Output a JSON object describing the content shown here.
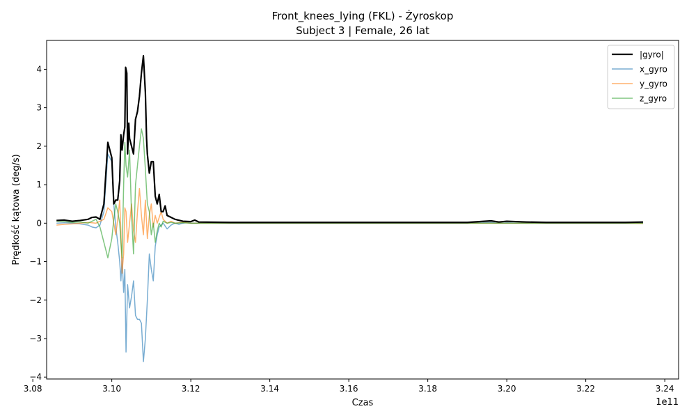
{
  "chart_data": {
    "type": "line",
    "title": "Front_knees_lying (FKL) - Żyroskop",
    "subtitle": "Subject 3 | Female, 26 lat",
    "xlabel": "Czas",
    "ylabel": "Prędkość kątowa (deg/s)",
    "x_offset_label": "1e11",
    "xlim": [
      3.0835,
      3.2435
    ],
    "ylim": [
      -4.05,
      4.75
    ],
    "x_ticks": [
      3.08,
      3.1,
      3.12,
      3.14,
      3.16,
      3.18,
      3.2,
      3.22,
      3.24
    ],
    "x_tick_labels": [
      "3.08",
      "3.10",
      "3.12",
      "3.14",
      "3.16",
      "3.18",
      "3.20",
      "3.22",
      "3.24"
    ],
    "y_ticks": [
      -4,
      -3,
      -2,
      -1,
      0,
      1,
      2,
      3,
      4
    ],
    "y_tick_labels": [
      "−4",
      "−3",
      "−2",
      "−1",
      "0",
      "1",
      "2",
      "3",
      "4"
    ],
    "grid": false,
    "legend_position": "top-right",
    "series": [
      {
        "name": "x_gyro",
        "color": "#1f77b4",
        "opacity": 0.6,
        "width": 1.5,
        "points": [
          [
            3.086,
            0.0
          ],
          [
            3.088,
            0.01
          ],
          [
            3.09,
            0.0
          ],
          [
            3.092,
            -0.02
          ],
          [
            3.094,
            -0.05
          ],
          [
            3.095,
            -0.1
          ],
          [
            3.096,
            -0.12
          ],
          [
            3.097,
            -0.05
          ],
          [
            3.098,
            0.3
          ],
          [
            3.099,
            1.8
          ],
          [
            3.1,
            1.6
          ],
          [
            3.1005,
            0.5
          ],
          [
            3.101,
            -0.1
          ],
          [
            3.1015,
            -0.5
          ],
          [
            3.102,
            -1.0
          ],
          [
            3.1023,
            -1.5
          ],
          [
            3.1026,
            -0.9
          ],
          [
            3.103,
            -1.8
          ],
          [
            3.1033,
            -1.2
          ],
          [
            3.1036,
            -3.35
          ],
          [
            3.104,
            -1.6
          ],
          [
            3.1045,
            -2.2
          ],
          [
            3.105,
            -1.9
          ],
          [
            3.1055,
            -1.5
          ],
          [
            3.106,
            -2.4
          ],
          [
            3.1065,
            -2.5
          ],
          [
            3.107,
            -2.5
          ],
          [
            3.1075,
            -2.6
          ],
          [
            3.1078,
            -3.2
          ],
          [
            3.108,
            -3.6
          ],
          [
            3.1085,
            -3.0
          ],
          [
            3.109,
            -2.0
          ],
          [
            3.1095,
            -0.8
          ],
          [
            3.11,
            -1.2
          ],
          [
            3.1105,
            -1.5
          ],
          [
            3.111,
            -0.6
          ],
          [
            3.1115,
            -0.3
          ],
          [
            3.112,
            -0.1
          ],
          [
            3.1125,
            -0.05
          ],
          [
            3.113,
            0.0
          ],
          [
            3.114,
            -0.15
          ],
          [
            3.115,
            -0.05
          ],
          [
            3.116,
            0.0
          ],
          [
            3.117,
            -0.03
          ],
          [
            3.118,
            0.0
          ],
          [
            3.119,
            0.02
          ],
          [
            3.12,
            0.0
          ],
          [
            3.121,
            0.0
          ],
          [
            3.122,
            0.0
          ],
          [
            3.13,
            0.0
          ],
          [
            3.14,
            0.0
          ],
          [
            3.15,
            0.0
          ],
          [
            3.16,
            0.0
          ],
          [
            3.17,
            0.0
          ],
          [
            3.18,
            0.0
          ],
          [
            3.19,
            0.0
          ],
          [
            3.196,
            0.02
          ],
          [
            3.198,
            0.0
          ],
          [
            3.2,
            0.01
          ],
          [
            3.205,
            0.0
          ],
          [
            3.21,
            0.0
          ],
          [
            3.22,
            0.0
          ],
          [
            3.23,
            0.0
          ],
          [
            3.2345,
            0.0
          ]
        ]
      },
      {
        "name": "y_gyro",
        "color": "#ff7f0e",
        "opacity": 0.6,
        "width": 1.5,
        "points": [
          [
            3.086,
            -0.05
          ],
          [
            3.088,
            -0.03
          ],
          [
            3.09,
            -0.02
          ],
          [
            3.092,
            0.0
          ],
          [
            3.094,
            0.02
          ],
          [
            3.096,
            0.0
          ],
          [
            3.097,
            0.05
          ],
          [
            3.098,
            0.1
          ],
          [
            3.099,
            0.4
          ],
          [
            3.1,
            0.3
          ],
          [
            3.1005,
            0.0
          ],
          [
            3.101,
            -0.3
          ],
          [
            3.1015,
            0.1
          ],
          [
            3.102,
            0.6
          ],
          [
            3.1023,
            -0.2
          ],
          [
            3.1026,
            -1.3
          ],
          [
            3.103,
            -0.8
          ],
          [
            3.1033,
            0.4
          ],
          [
            3.1036,
            0.3
          ],
          [
            3.104,
            -0.5
          ],
          [
            3.1045,
            0.0
          ],
          [
            3.105,
            0.5
          ],
          [
            3.1055,
            -0.2
          ],
          [
            3.106,
            -0.5
          ],
          [
            3.1065,
            0.3
          ],
          [
            3.107,
            0.9
          ],
          [
            3.1075,
            0.2
          ],
          [
            3.108,
            -0.3
          ],
          [
            3.1085,
            0.6
          ],
          [
            3.109,
            -0.4
          ],
          [
            3.1095,
            0.2
          ],
          [
            3.11,
            0.5
          ],
          [
            3.1105,
            -0.1
          ],
          [
            3.111,
            0.2
          ],
          [
            3.1115,
            0.0
          ],
          [
            3.112,
            0.15
          ],
          [
            3.1125,
            0.3
          ],
          [
            3.113,
            0.1
          ],
          [
            3.114,
            0.0
          ],
          [
            3.115,
            0.05
          ],
          [
            3.116,
            0.0
          ],
          [
            3.118,
            0.02
          ],
          [
            3.12,
            0.0
          ],
          [
            3.122,
            0.0
          ],
          [
            3.13,
            0.0
          ],
          [
            3.14,
            0.0
          ],
          [
            3.15,
            0.0
          ],
          [
            3.16,
            0.0
          ],
          [
            3.17,
            0.0
          ],
          [
            3.18,
            0.0
          ],
          [
            3.19,
            0.0
          ],
          [
            3.2,
            0.0
          ],
          [
            3.21,
            0.0
          ],
          [
            3.22,
            0.0
          ],
          [
            3.23,
            0.0
          ],
          [
            3.2345,
            -0.01
          ]
        ]
      },
      {
        "name": "z_gyro",
        "color": "#2ca02c",
        "opacity": 0.6,
        "width": 1.5,
        "points": [
          [
            3.086,
            0.05
          ],
          [
            3.088,
            0.04
          ],
          [
            3.09,
            0.02
          ],
          [
            3.092,
            0.03
          ],
          [
            3.094,
            0.0
          ],
          [
            3.095,
            0.05
          ],
          [
            3.096,
            0.1
          ],
          [
            3.097,
            -0.1
          ],
          [
            3.098,
            -0.5
          ],
          [
            3.099,
            -0.9
          ],
          [
            3.1,
            -0.4
          ],
          [
            3.1005,
            0.1
          ],
          [
            3.101,
            0.5
          ],
          [
            3.1015,
            0.3
          ],
          [
            3.102,
            0.0
          ],
          [
            3.1023,
            -0.5
          ],
          [
            3.1026,
            -0.9
          ],
          [
            3.103,
            1.0
          ],
          [
            3.1033,
            2.1
          ],
          [
            3.1036,
            1.5
          ],
          [
            3.104,
            1.2
          ],
          [
            3.1045,
            1.9
          ],
          [
            3.105,
            0.2
          ],
          [
            3.1055,
            -0.8
          ],
          [
            3.106,
            1.0
          ],
          [
            3.1065,
            1.5
          ],
          [
            3.107,
            2.0
          ],
          [
            3.1075,
            2.45
          ],
          [
            3.108,
            2.2
          ],
          [
            3.1085,
            1.4
          ],
          [
            3.109,
            0.5
          ],
          [
            3.1095,
            0.3
          ],
          [
            3.11,
            -0.3
          ],
          [
            3.1105,
            0.0
          ],
          [
            3.111,
            -0.5
          ],
          [
            3.1115,
            -0.2
          ],
          [
            3.112,
            0.0
          ],
          [
            3.1125,
            -0.1
          ],
          [
            3.113,
            0.05
          ],
          [
            3.114,
            0.0
          ],
          [
            3.115,
            0.02
          ],
          [
            3.116,
            0.0
          ],
          [
            3.118,
            0.01
          ],
          [
            3.12,
            0.0
          ],
          [
            3.122,
            0.0
          ],
          [
            3.13,
            0.0
          ],
          [
            3.14,
            0.0
          ],
          [
            3.15,
            0.0
          ],
          [
            3.16,
            0.0
          ],
          [
            3.17,
            0.0
          ],
          [
            3.18,
            0.0
          ],
          [
            3.19,
            0.0
          ],
          [
            3.2,
            0.0
          ],
          [
            3.21,
            0.0
          ],
          [
            3.22,
            0.0
          ],
          [
            3.23,
            0.0
          ],
          [
            3.2345,
            0.0
          ]
        ]
      },
      {
        "name": "|gyro|",
        "color": "#000000",
        "opacity": 1.0,
        "width": 2.2,
        "points": [
          [
            3.086,
            0.07
          ],
          [
            3.088,
            0.08
          ],
          [
            3.09,
            0.05
          ],
          [
            3.092,
            0.07
          ],
          [
            3.094,
            0.1
          ],
          [
            3.095,
            0.15
          ],
          [
            3.096,
            0.16
          ],
          [
            3.097,
            0.1
          ],
          [
            3.098,
            0.5
          ],
          [
            3.099,
            2.1
          ],
          [
            3.1,
            1.7
          ],
          [
            3.1005,
            0.5
          ],
          [
            3.101,
            0.6
          ],
          [
            3.1015,
            0.6
          ],
          [
            3.102,
            1.1
          ],
          [
            3.1023,
            2.3
          ],
          [
            3.1026,
            1.9
          ],
          [
            3.103,
            2.3
          ],
          [
            3.1033,
            2.5
          ],
          [
            3.1035,
            4.05
          ],
          [
            3.1038,
            3.9
          ],
          [
            3.104,
            1.8
          ],
          [
            3.1043,
            2.6
          ],
          [
            3.1045,
            2.2
          ],
          [
            3.105,
            2.0
          ],
          [
            3.1055,
            1.8
          ],
          [
            3.106,
            2.7
          ],
          [
            3.1065,
            2.9
          ],
          [
            3.107,
            3.3
          ],
          [
            3.1075,
            3.9
          ],
          [
            3.108,
            4.35
          ],
          [
            3.1085,
            3.4
          ],
          [
            3.1088,
            2.2
          ],
          [
            3.109,
            1.8
          ],
          [
            3.1095,
            1.3
          ],
          [
            3.11,
            1.6
          ],
          [
            3.1105,
            1.6
          ],
          [
            3.111,
            0.7
          ],
          [
            3.1115,
            0.5
          ],
          [
            3.112,
            0.75
          ],
          [
            3.1125,
            0.3
          ],
          [
            3.113,
            0.3
          ],
          [
            3.1135,
            0.45
          ],
          [
            3.114,
            0.2
          ],
          [
            3.115,
            0.15
          ],
          [
            3.116,
            0.1
          ],
          [
            3.118,
            0.05
          ],
          [
            3.12,
            0.04
          ],
          [
            3.121,
            0.08
          ],
          [
            3.122,
            0.03
          ],
          [
            3.13,
            0.02
          ],
          [
            3.14,
            0.02
          ],
          [
            3.15,
            0.02
          ],
          [
            3.16,
            0.02
          ],
          [
            3.17,
            0.02
          ],
          [
            3.18,
            0.02
          ],
          [
            3.19,
            0.02
          ],
          [
            3.196,
            0.06
          ],
          [
            3.198,
            0.03
          ],
          [
            3.2,
            0.05
          ],
          [
            3.205,
            0.03
          ],
          [
            3.21,
            0.02
          ],
          [
            3.22,
            0.02
          ],
          [
            3.23,
            0.02
          ],
          [
            3.2345,
            0.03
          ]
        ]
      }
    ],
    "legend_order": [
      "|gyro|",
      "x_gyro",
      "y_gyro",
      "z_gyro"
    ]
  }
}
